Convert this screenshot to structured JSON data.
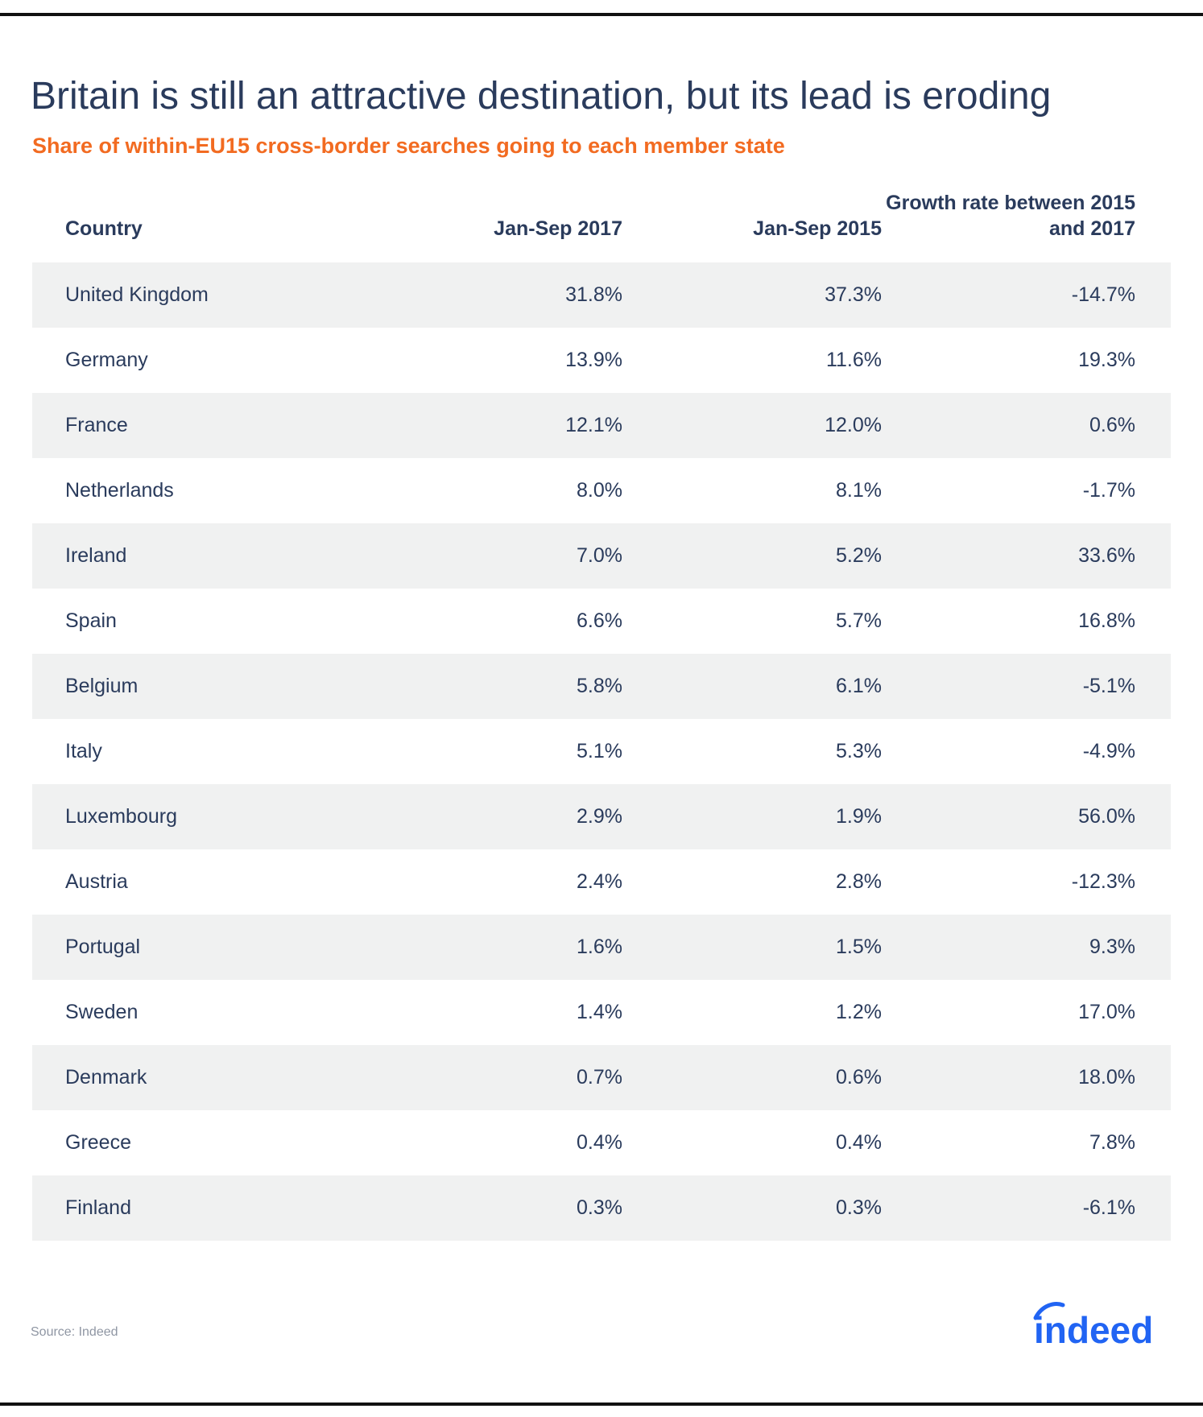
{
  "title": "Britain is still an attractive destination, but its lead is eroding",
  "subtitle": "Share of within-EU15 cross-border searches going to each member state",
  "source": "Source: Indeed",
  "logo_text": "indeed",
  "colors": {
    "title": "#2a3b5c",
    "subtitle": "#f26b21",
    "row_shade": "#f0f1f1",
    "logo": "#2164f3"
  },
  "chart_data": {
    "type": "table",
    "title": "Britain is still an attractive destination, but its lead is eroding",
    "subtitle": "Share of within-EU15 cross-border searches going to each member state",
    "columns": [
      "Country",
      "Jan-Sep 2017",
      "Jan-Sep 2015",
      "Growth rate between 2015 and 2017"
    ],
    "rows": [
      [
        "United Kingdom",
        "31.8%",
        "37.3%",
        "-14.7%"
      ],
      [
        "Germany",
        "13.9%",
        "11.6%",
        "19.3%"
      ],
      [
        "France",
        "12.1%",
        "12.0%",
        "0.6%"
      ],
      [
        "Netherlands",
        "8.0%",
        "8.1%",
        "-1.7%"
      ],
      [
        "Ireland",
        "7.0%",
        "5.2%",
        "33.6%"
      ],
      [
        "Spain",
        "6.6%",
        "5.7%",
        "16.8%"
      ],
      [
        "Belgium",
        "5.8%",
        "6.1%",
        "-5.1%"
      ],
      [
        "Italy",
        "5.1%",
        "5.3%",
        "-4.9%"
      ],
      [
        "Luxembourg",
        "2.9%",
        "1.9%",
        "56.0%"
      ],
      [
        "Austria",
        "2.4%",
        "2.8%",
        "-12.3%"
      ],
      [
        "Portugal",
        "1.6%",
        "1.5%",
        "9.3%"
      ],
      [
        "Sweden",
        "1.4%",
        "1.2%",
        "17.0%"
      ],
      [
        "Denmark",
        "0.7%",
        "0.6%",
        "18.0%"
      ],
      [
        "Greece",
        "0.4%",
        "0.4%",
        "7.8%"
      ],
      [
        "Finland",
        "0.3%",
        "0.3%",
        "-6.1%"
      ]
    ]
  }
}
